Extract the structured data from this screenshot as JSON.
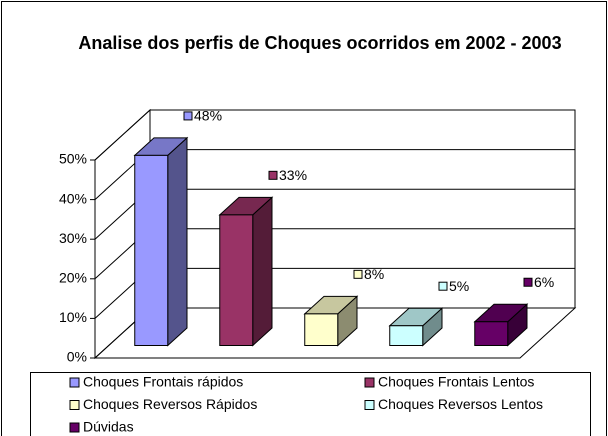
{
  "chart_data": {
    "type": "bar",
    "title": "Analise dos perfis de Choques ocorridos em 2002 - 2003",
    "categories": [
      null
    ],
    "ylim": [
      0,
      50
    ],
    "yticks": [
      {
        "value": 0,
        "label": "0%"
      },
      {
        "value": 10,
        "label": "10%"
      },
      {
        "value": 20,
        "label": "20%"
      },
      {
        "value": 30,
        "label": "30%"
      },
      {
        "value": 40,
        "label": "40%"
      },
      {
        "value": 50,
        "label": "50%"
      }
    ],
    "grid": true,
    "legend": "bottom",
    "series": [
      {
        "name": "Choques Frontais rápidos",
        "color": "#9999ff",
        "values": [
          48
        ],
        "value_labels": [
          "48%"
        ]
      },
      {
        "name": "Choques Frontais Lentos",
        "color": "#993366",
        "values": [
          33
        ],
        "value_labels": [
          "33%"
        ]
      },
      {
        "name": "Choques Reversos Rápidos",
        "color": "#ffffcc",
        "values": [
          8
        ],
        "value_labels": [
          "8%"
        ]
      },
      {
        "name": "Choques Reversos Lentos",
        "color": "#ccffff",
        "values": [
          5
        ],
        "value_labels": [
          "5%"
        ]
      },
      {
        "name": "Dúvidas",
        "color": "#660066",
        "values": [
          6
        ],
        "value_labels": [
          "6%"
        ]
      }
    ]
  }
}
